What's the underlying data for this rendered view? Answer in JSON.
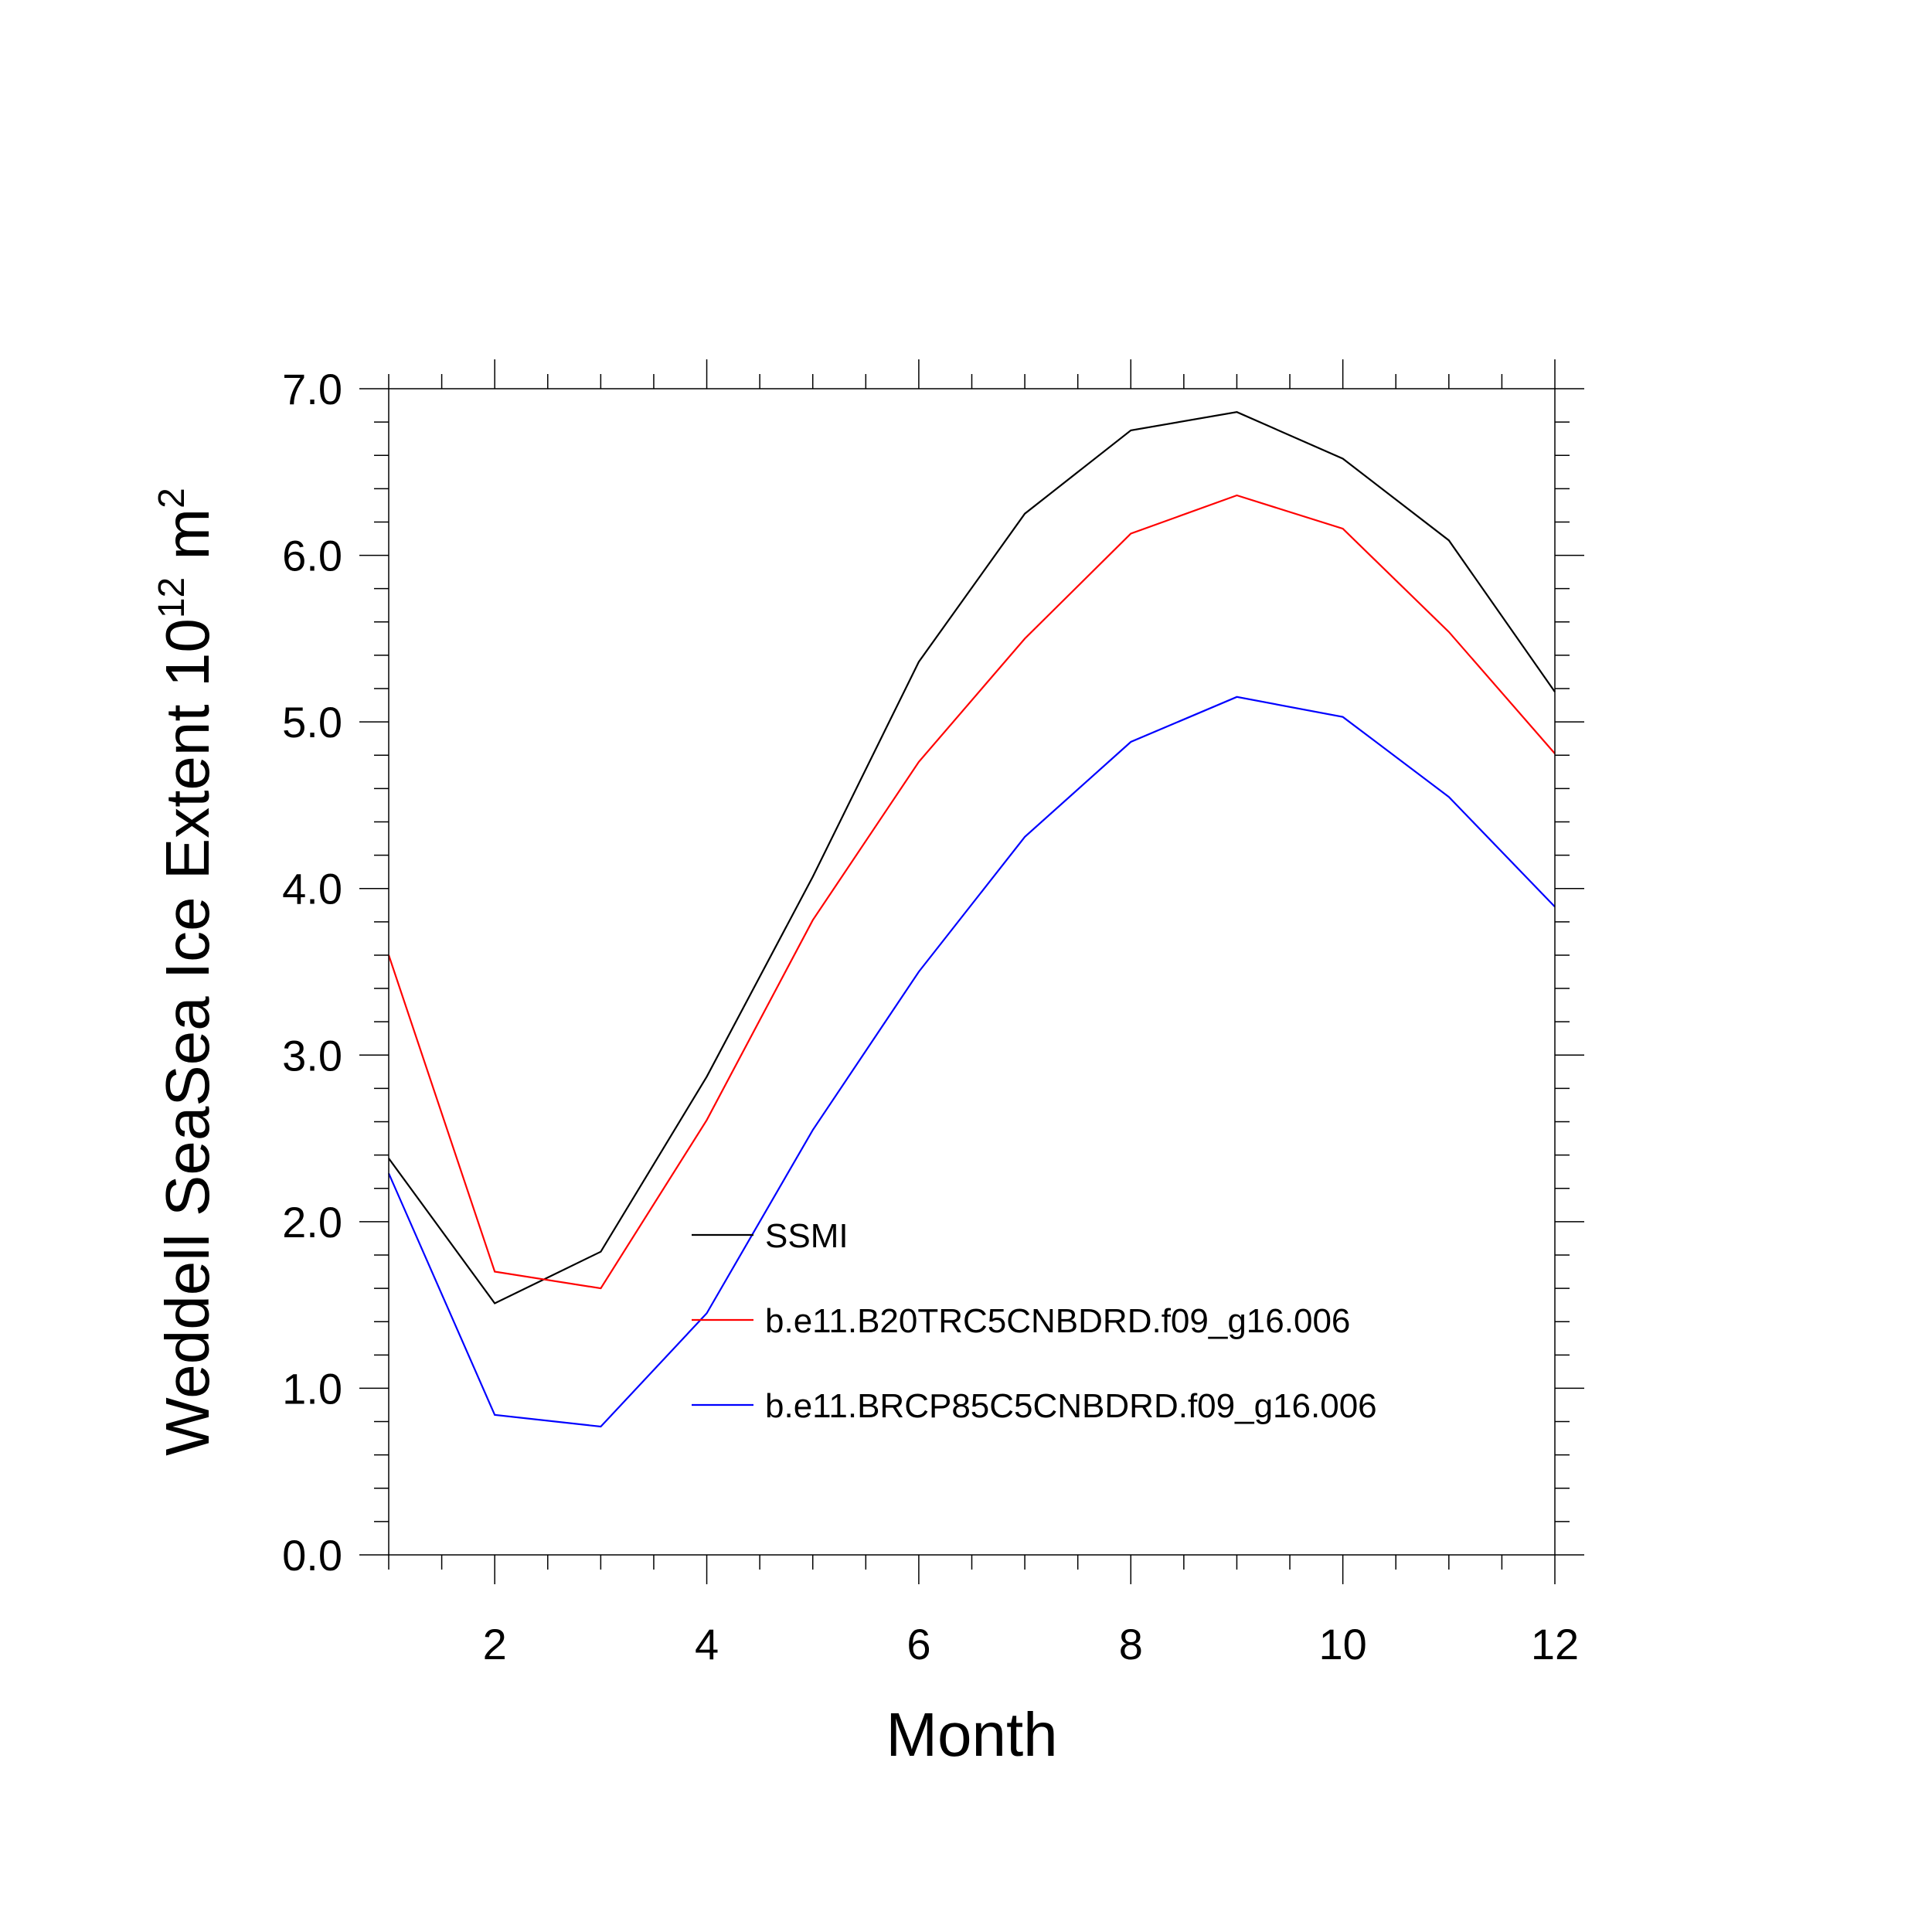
{
  "chart_data": {
    "type": "line",
    "title": "",
    "xlabel": "Month",
    "ylabel": {
      "main": "Weddell SeaSea Ice Extent 10",
      "superscript1": "12",
      "unit": " m",
      "superscript2": "2"
    },
    "xlim": [
      1,
      12
    ],
    "ylim": [
      0.0,
      7.0
    ],
    "x": [
      1,
      2,
      3,
      4,
      5,
      6,
      7,
      8,
      9,
      10,
      11,
      12
    ],
    "x_ticks": [
      2,
      4,
      6,
      8,
      10,
      12
    ],
    "x_tick_labels": [
      "2",
      "4",
      "6",
      "8",
      "10",
      "12"
    ],
    "y_ticks": [
      0.0,
      1.0,
      2.0,
      3.0,
      4.0,
      5.0,
      6.0,
      7.0
    ],
    "y_tick_labels": [
      "0.0",
      "1.0",
      "2.0",
      "3.0",
      "4.0",
      "5.0",
      "6.0",
      "7.0"
    ],
    "grid": false,
    "legend_position": "center-right inside plot",
    "series": [
      {
        "name": "SSMI",
        "color": "#000000",
        "values": [
          2.38,
          1.51,
          1.82,
          2.87,
          4.07,
          5.36,
          6.25,
          6.75,
          6.86,
          6.58,
          6.09,
          5.18
        ]
      },
      {
        "name": "b.e11.B20TRC5CNBDRD.f09_g16.006",
        "color": "#ff0000",
        "values": [
          3.6,
          1.7,
          1.6,
          2.61,
          3.81,
          4.76,
          5.5,
          6.13,
          6.36,
          6.16,
          5.54,
          4.81
        ]
      },
      {
        "name": "b.e11.BRCP85C5CNBDRD.f09_g16.006",
        "color": "#0000ff",
        "values": [
          2.29,
          0.84,
          0.77,
          1.45,
          2.55,
          3.5,
          4.31,
          4.88,
          5.15,
          5.03,
          4.55,
          3.89
        ]
      }
    ]
  }
}
